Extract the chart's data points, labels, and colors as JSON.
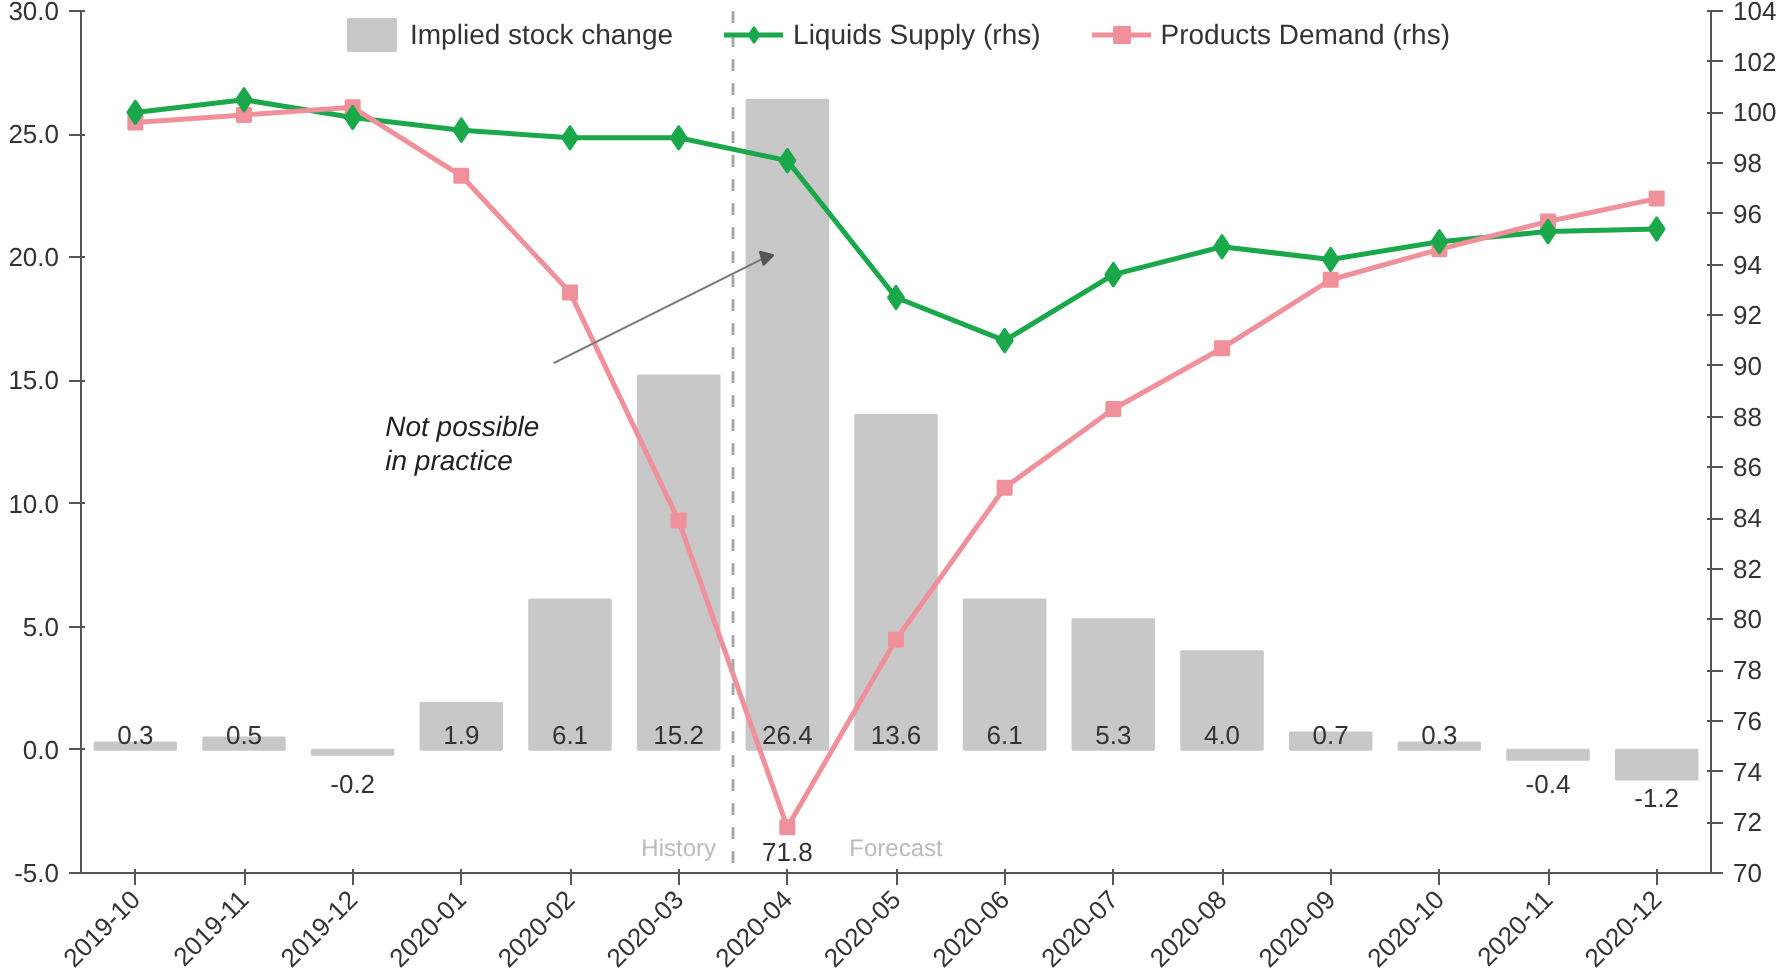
{
  "chart_data": {
    "type": "bar",
    "categories": [
      "2019-10",
      "2019-11",
      "2019-12",
      "2020-01",
      "2020-02",
      "2020-03",
      "2020-04",
      "2020-05",
      "2020-06",
      "2020-07",
      "2020-08",
      "2020-09",
      "2020-10",
      "2020-11",
      "2020-12"
    ],
    "series": [
      {
        "name": "Implied stock change",
        "color": "#c8c8c8",
        "values": [
          0.3,
          0.5,
          -0.2,
          1.9,
          6.1,
          15.2,
          26.4,
          13.6,
          6.1,
          5.3,
          4.0,
          0.7,
          0.3,
          -0.4,
          -1.2
        ],
        "value_labels": [
          "0.3",
          "0.5",
          "-0.2",
          "1.9",
          "6.1",
          "15.2",
          "26.4",
          "13.6",
          "6.1",
          "5.3",
          "4.0",
          "0.7",
          "0.3",
          "-0.4",
          "-1.2"
        ]
      },
      {
        "name": "Liquids Supply (rhs)",
        "type": "line",
        "axis": "y2",
        "color": "#1aa84a",
        "marker": "diamond",
        "values": [
          100.0,
          100.5,
          99.8,
          99.3,
          99.0,
          99.0,
          98.1,
          92.7,
          91.0,
          93.6,
          94.7,
          94.2,
          94.9,
          95.3,
          95.4
        ]
      },
      {
        "name": "Products Demand (rhs)",
        "type": "line",
        "axis": "y2",
        "color": "#f0909a",
        "marker": "square",
        "values": [
          99.6,
          99.9,
          100.2,
          97.5,
          92.9,
          83.9,
          71.8,
          79.2,
          85.2,
          88.3,
          90.7,
          93.4,
          94.6,
          95.7,
          96.6
        ],
        "value_labels": [
          null,
          null,
          null,
          null,
          null,
          null,
          "71.8",
          null,
          null,
          null,
          null,
          null,
          null,
          null,
          null
        ]
      }
    ],
    "ylim": [
      -5,
      30
    ],
    "yticks": [
      {
        "value": -5,
        "label": "-5.0"
      },
      {
        "value": 0,
        "label": "0.0"
      },
      {
        "value": 5,
        "label": "5.0"
      },
      {
        "value": 10,
        "label": "10.0"
      },
      {
        "value": 15,
        "label": "15.0"
      },
      {
        "value": 20,
        "label": "20.0"
      },
      {
        "value": 25,
        "label": "25.0"
      },
      {
        "value": 30,
        "label": "30.0"
      }
    ],
    "y2lim": [
      70,
      104
    ],
    "y2ticks": [
      70,
      72,
      74,
      76,
      78,
      80,
      82,
      84,
      86,
      88,
      90,
      92,
      94,
      96,
      98,
      100,
      102,
      104
    ],
    "ref_lines": [
      {
        "axis": "x",
        "value": "2020-04",
        "color": "#aaaaaa",
        "line_style": "dashed"
      }
    ],
    "annotations": [
      "Not possible\nin practice",
      "History",
      "Forecast"
    ],
    "grid": false,
    "legend": "top",
    "line_style": "solid"
  }
}
